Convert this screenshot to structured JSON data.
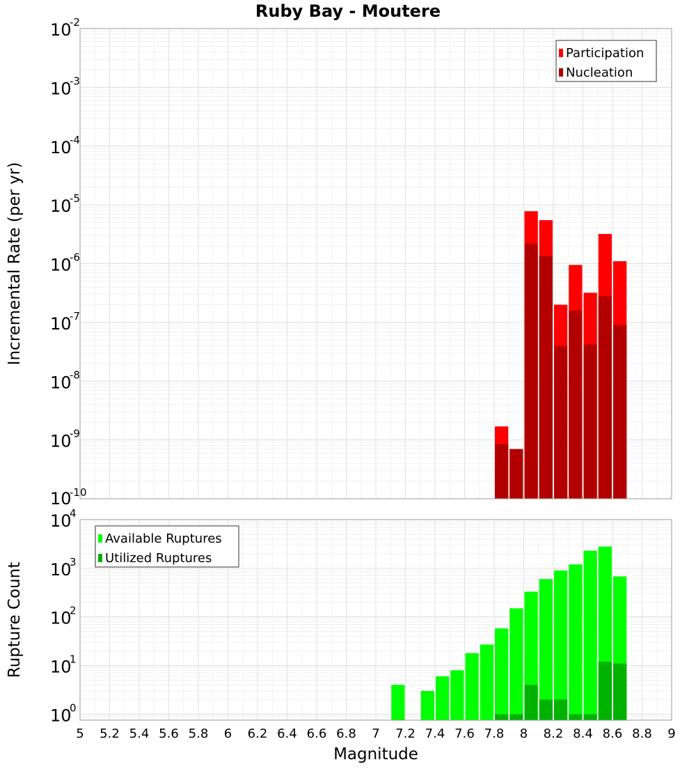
{
  "chart_data": [
    {
      "type": "bar",
      "title": "Ruby Bay - Moutere",
      "ylabel": "Incremental Rate (per yr)",
      "xlabel": "",
      "yscale": "log",
      "ylim": [
        1e-10,
        0.01
      ],
      "xlim": [
        5,
        9
      ],
      "y_tick_labels": [
        {
          "base": "10",
          "exp": "-10"
        },
        {
          "base": "10",
          "exp": "-9"
        },
        {
          "base": "10",
          "exp": "-8"
        },
        {
          "base": "10",
          "exp": "-7"
        },
        {
          "base": "10",
          "exp": "-6"
        },
        {
          "base": "10",
          "exp": "-5"
        },
        {
          "base": "10",
          "exp": "-4"
        },
        {
          "base": "10",
          "exp": "-3"
        },
        {
          "base": "10",
          "exp": "-2"
        }
      ],
      "grid": true,
      "legend_position": "top-right",
      "series": [
        {
          "name": "Participation",
          "color": "#ff0000",
          "points": [
            {
              "x": 7.85,
              "y": 1.7e-09
            },
            {
              "x": 7.95,
              "y": 7e-10
            },
            {
              "x": 8.05,
              "y": 7.8e-06
            },
            {
              "x": 8.15,
              "y": 5.5e-06
            },
            {
              "x": 8.25,
              "y": 2e-07
            },
            {
              "x": 8.35,
              "y": 9.5e-07
            },
            {
              "x": 8.45,
              "y": 3.2e-07
            },
            {
              "x": 8.55,
              "y": 3.2e-06
            },
            {
              "x": 8.65,
              "y": 1.1e-06
            }
          ]
        },
        {
          "name": "Nucleation",
          "color": "#b20000",
          "points": [
            {
              "x": 7.85,
              "y": 8.5e-10
            },
            {
              "x": 7.95,
              "y": 7e-10
            },
            {
              "x": 8.05,
              "y": 2.2e-06
            },
            {
              "x": 8.15,
              "y": 1.35e-06
            },
            {
              "x": 8.25,
              "y": 4e-08
            },
            {
              "x": 8.35,
              "y": 1.6e-07
            },
            {
              "x": 8.45,
              "y": 4.2e-08
            },
            {
              "x": 8.55,
              "y": 2.8e-07
            },
            {
              "x": 8.65,
              "y": 9e-08
            }
          ]
        }
      ]
    },
    {
      "type": "bar",
      "title": "",
      "ylabel": "Rupture Count",
      "xlabel": "Magnitude",
      "yscale": "log",
      "ylim": [
        0.75,
        10000
      ],
      "xlim": [
        5,
        9
      ],
      "x_tick_labels": [
        "5",
        "5.2",
        "5.4",
        "5.6",
        "5.8",
        "6",
        "6.2",
        "6.4",
        "6.6",
        "6.8",
        "7",
        "7.2",
        "7.4",
        "7.6",
        "7.8",
        "8",
        "8.2",
        "8.4",
        "8.6",
        "8.8",
        "9"
      ],
      "y_tick_labels": [
        {
          "base": "10",
          "exp": "0"
        },
        {
          "base": "10",
          "exp": "1"
        },
        {
          "base": "10",
          "exp": "2"
        },
        {
          "base": "10",
          "exp": "3"
        },
        {
          "base": "10",
          "exp": "4"
        }
      ],
      "grid": true,
      "legend_position": "top-left",
      "series": [
        {
          "name": "Available Ruptures",
          "color": "#00ff00",
          "points": [
            {
              "x": 7.15,
              "y": 4
            },
            {
              "x": 7.35,
              "y": 3
            },
            {
              "x": 7.45,
              "y": 6
            },
            {
              "x": 7.55,
              "y": 8
            },
            {
              "x": 7.65,
              "y": 18
            },
            {
              "x": 7.75,
              "y": 27
            },
            {
              "x": 7.85,
              "y": 58
            },
            {
              "x": 7.95,
              "y": 150
            },
            {
              "x": 8.05,
              "y": 330
            },
            {
              "x": 8.15,
              "y": 600
            },
            {
              "x": 8.25,
              "y": 900
            },
            {
              "x": 8.35,
              "y": 1200
            },
            {
              "x": 8.45,
              "y": 2300
            },
            {
              "x": 8.55,
              "y": 2800
            },
            {
              "x": 8.65,
              "y": 680
            }
          ]
        },
        {
          "name": "Utilized Ruptures",
          "color": "#00b200",
          "points": [
            {
              "x": 7.85,
              "y": 1
            },
            {
              "x": 7.95,
              "y": 1
            },
            {
              "x": 8.05,
              "y": 4
            },
            {
              "x": 8.15,
              "y": 2
            },
            {
              "x": 8.25,
              "y": 2
            },
            {
              "x": 8.35,
              "y": 1
            },
            {
              "x": 8.45,
              "y": 1
            },
            {
              "x": 8.55,
              "y": 12
            },
            {
              "x": 8.65,
              "y": 11
            }
          ]
        }
      ]
    }
  ]
}
